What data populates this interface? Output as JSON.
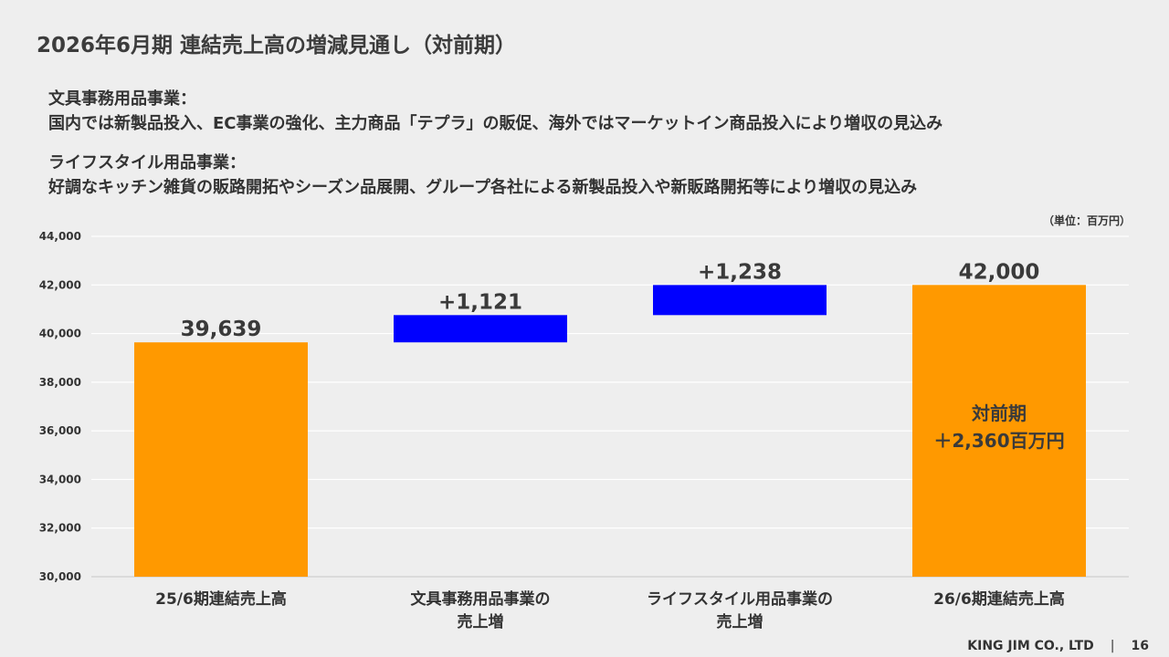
{
  "title": "2026年6月期 連結売上高の増減見通し（対前期）",
  "segments": [
    {
      "heading": "文具事務用品事業：",
      "text": "国内では新製品投入、EC事業の強化、主力商品「テプラ」の販促、海外ではマーケットイン商品投入により増収の見込み"
    },
    {
      "heading": "ライフスタイル用品事業：",
      "text": "好調なキッチン雑貨の販路開拓やシーズン品展開、グループ各社による新製品投入や新販路開拓等により増収の見込み"
    }
  ],
  "unit_label": "（単位：百万円）",
  "chart_data": {
    "type": "bar",
    "subtype": "waterfall",
    "categories": [
      [
        "25/6期連結売上高"
      ],
      [
        "文具事務用品事業の",
        "売上増"
      ],
      [
        "ライフスタイル用品事業の",
        "売上増"
      ],
      [
        "26/6期連結売上高"
      ]
    ],
    "bars": [
      {
        "base": 30000,
        "top": 39639,
        "label": "39,639",
        "color": "#ff9900"
      },
      {
        "base": 39639,
        "top": 40760,
        "label": "+1,121",
        "color": "#0000ff"
      },
      {
        "base": 40760,
        "top": 41998,
        "label": "+1,238",
        "color": "#0000ff"
      },
      {
        "base": 30000,
        "top": 42000,
        "label": "42,000",
        "color": "#ff9900"
      }
    ],
    "ylim": [
      30000,
      44000
    ],
    "yticks": [
      "30,000",
      "32,000",
      "34,000",
      "36,000",
      "38,000",
      "40,000",
      "42,000",
      "44,000"
    ],
    "ytick_values": [
      30000,
      32000,
      34000,
      36000,
      38000,
      40000,
      42000,
      44000
    ],
    "grid": true,
    "annotation": [
      "対前期",
      "＋2,360百万円"
    ]
  },
  "footer": {
    "company": "KING JIM CO., LTD",
    "separator": "|",
    "page": "16"
  }
}
